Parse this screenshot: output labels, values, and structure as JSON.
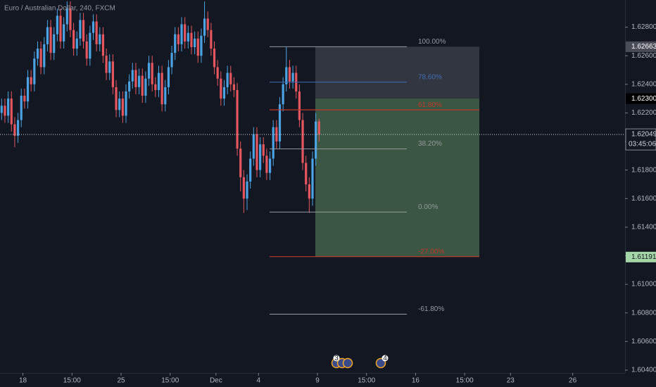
{
  "chart_data": {
    "type": "candlestick",
    "title": "Euro / Australian Dollar, 240, FXCM",
    "up_color": "#4ba3e3",
    "down_color": "#e5565e",
    "ylim": [
      1.6038,
      1.6299
    ],
    "xlim": [
      -0.5,
      190.5
    ],
    "grid": false,
    "yticks": [
      {
        "value": 1.604,
        "label": "1.60400"
      },
      {
        "value": 1.606,
        "label": "1.60600"
      },
      {
        "value": 1.608,
        "label": "1.60800"
      },
      {
        "value": 1.61,
        "label": "1.61000"
      },
      {
        "value": 1.612,
        "label": "1.61200"
      },
      {
        "value": 1.614,
        "label": "1.61400"
      },
      {
        "value": 1.616,
        "label": "1.61600"
      },
      {
        "value": 1.618,
        "label": "1.61800"
      },
      {
        "value": 1.62,
        "label": "1.62000"
      },
      {
        "value": 1.622,
        "label": "1.62200"
      },
      {
        "value": 1.624,
        "label": "1.62400"
      },
      {
        "value": 1.626,
        "label": "1.62600"
      },
      {
        "value": 1.628,
        "label": "1.62800"
      }
    ],
    "xticks": [
      {
        "value": 6.5,
        "label": "18"
      },
      {
        "value": 21.5,
        "label": "15:00"
      },
      {
        "value": 36.5,
        "label": "25"
      },
      {
        "value": 51.5,
        "label": "15:00"
      },
      {
        "value": 65.5,
        "label": "Dec"
      },
      {
        "value": 78.5,
        "label": "4"
      },
      {
        "value": 96.5,
        "label": "9"
      },
      {
        "value": 111.5,
        "label": "15:00"
      },
      {
        "value": 126.5,
        "label": "16"
      },
      {
        "value": 141.5,
        "label": "15:00"
      },
      {
        "value": 155.5,
        "label": "23"
      },
      {
        "value": 174.5,
        "label": "26"
      }
    ],
    "open": [
      1.622,
      1.6225,
      1.6218,
      1.623,
      1.6212,
      1.6204,
      1.6215,
      1.6232,
      1.6228,
      1.6245,
      1.624,
      1.6258,
      1.6265,
      1.6252,
      1.6268,
      1.628,
      1.6262,
      1.6275,
      1.6288,
      1.627,
      1.6282,
      1.6293,
      1.6278,
      1.6265,
      1.6272,
      1.6285,
      1.627,
      1.6258,
      1.6276,
      1.6284,
      1.6268,
      1.6275,
      1.626,
      1.6248,
      1.6256,
      1.6238,
      1.6222,
      1.623,
      1.6218,
      1.6235,
      1.6242,
      1.625,
      1.6238,
      1.6246,
      1.6232,
      1.6244,
      1.6255,
      1.624,
      1.6236,
      1.6248,
      1.6226,
      1.6238,
      1.6252,
      1.6262,
      1.6275,
      1.6268,
      1.6282,
      1.627,
      1.6276,
      1.6266,
      1.6272,
      1.626,
      1.6274,
      1.6286,
      1.6278,
      1.6265,
      1.6252,
      1.6244,
      1.623,
      1.6238,
      1.6248,
      1.624,
      1.6236,
      1.6195,
      1.6175,
      1.616,
      1.6172,
      1.6188,
      1.6205,
      1.618,
      1.6198,
      1.619,
      1.6178,
      1.6188,
      1.621,
      1.62,
      1.6226,
      1.624,
      1.6252,
      1.6242,
      1.6248,
      1.6235,
      1.6215,
      1.6185,
      1.617,
      1.616,
      1.6188,
      1.6214
    ],
    "close": [
      1.6225,
      1.6218,
      1.623,
      1.6212,
      1.6204,
      1.6215,
      1.6232,
      1.6228,
      1.6245,
      1.624,
      1.6258,
      1.6265,
      1.6252,
      1.6268,
      1.628,
      1.6262,
      1.6275,
      1.6288,
      1.627,
      1.6282,
      1.6293,
      1.6278,
      1.6265,
      1.6272,
      1.6285,
      1.627,
      1.6258,
      1.6276,
      1.6284,
      1.6268,
      1.6275,
      1.626,
      1.6248,
      1.6256,
      1.6238,
      1.6222,
      1.623,
      1.6218,
      1.6235,
      1.6242,
      1.625,
      1.6238,
      1.6246,
      1.6232,
      1.6244,
      1.6255,
      1.624,
      1.6236,
      1.6248,
      1.6226,
      1.6238,
      1.6252,
      1.6262,
      1.6275,
      1.6268,
      1.6282,
      1.627,
      1.6276,
      1.6266,
      1.6272,
      1.626,
      1.6274,
      1.6286,
      1.6278,
      1.6265,
      1.6252,
      1.6244,
      1.623,
      1.6238,
      1.6248,
      1.624,
      1.6236,
      1.6195,
      1.6175,
      1.616,
      1.6172,
      1.6188,
      1.6205,
      1.618,
      1.6198,
      1.619,
      1.6178,
      1.6188,
      1.621,
      1.62,
      1.6226,
      1.624,
      1.6252,
      1.6242,
      1.6248,
      1.6235,
      1.6215,
      1.6185,
      1.617,
      1.616,
      1.6188,
      1.6214,
      1.6205
    ],
    "high": [
      1.623,
      1.623,
      1.6235,
      1.6235,
      1.6217,
      1.622,
      1.6237,
      1.6237,
      1.625,
      1.625,
      1.6263,
      1.627,
      1.627,
      1.6273,
      1.6285,
      1.6285,
      1.628,
      1.6293,
      1.6293,
      1.6287,
      1.6298,
      1.6298,
      1.6283,
      1.6277,
      1.629,
      1.629,
      1.6275,
      1.6281,
      1.6289,
      1.6289,
      1.628,
      1.628,
      1.6265,
      1.6261,
      1.6261,
      1.6243,
      1.6235,
      1.6235,
      1.624,
      1.6247,
      1.6255,
      1.6255,
      1.6251,
      1.6251,
      1.6249,
      1.626,
      1.626,
      1.6245,
      1.6253,
      1.6253,
      1.6243,
      1.6257,
      1.6267,
      1.628,
      1.628,
      1.6287,
      1.6287,
      1.6281,
      1.6281,
      1.6277,
      1.6277,
      1.6279,
      1.6298,
      1.6291,
      1.6283,
      1.627,
      1.6257,
      1.6249,
      1.6243,
      1.6253,
      1.6253,
      1.6245,
      1.6241,
      1.62,
      1.618,
      1.6177,
      1.6193,
      1.621,
      1.621,
      1.6203,
      1.6203,
      1.6195,
      1.6193,
      1.6215,
      1.6215,
      1.6231,
      1.6245,
      1.6266,
      1.6257,
      1.6253,
      1.6253,
      1.624,
      1.622,
      1.619,
      1.6175,
      1.6193,
      1.622,
      1.6216
    ],
    "low": [
      1.6215,
      1.6213,
      1.6213,
      1.6207,
      1.6196,
      1.6199,
      1.621,
      1.6223,
      1.6223,
      1.6235,
      1.6235,
      1.6253,
      1.6247,
      1.6247,
      1.6263,
      1.6257,
      1.6257,
      1.627,
      1.6265,
      1.6265,
      1.6277,
      1.6273,
      1.626,
      1.626,
      1.6267,
      1.6265,
      1.6253,
      1.6253,
      1.6271,
      1.6263,
      1.6263,
      1.6255,
      1.6243,
      1.6243,
      1.6233,
      1.6217,
      1.6217,
      1.6213,
      1.6213,
      1.623,
      1.6237,
      1.6233,
      1.6233,
      1.6227,
      1.6227,
      1.6239,
      1.6235,
      1.6231,
      1.6231,
      1.6221,
      1.6221,
      1.6233,
      1.6247,
      1.6257,
      1.6263,
      1.6263,
      1.6265,
      1.6265,
      1.6261,
      1.6261,
      1.6255,
      1.6255,
      1.6269,
      1.6273,
      1.626,
      1.6247,
      1.6239,
      1.6225,
      1.6225,
      1.6233,
      1.6235,
      1.6231,
      1.619,
      1.6165,
      1.615,
      1.6152,
      1.6167,
      1.6183,
      1.6175,
      1.6175,
      1.6185,
      1.6173,
      1.6173,
      1.6183,
      1.6195,
      1.6195,
      1.6221,
      1.6235,
      1.6237,
      1.6237,
      1.623,
      1.621,
      1.618,
      1.6165,
      1.615,
      1.6155,
      1.6183,
      1.62
    ],
    "fib_levels": [
      {
        "label": "100.00%",
        "price": 1.62663,
        "color": "#9598a1"
      },
      {
        "label": "78.60%",
        "price": 1.62415,
        "color": "#3f6fb5"
      },
      {
        "label": "61.80%",
        "price": 1.62221,
        "color": "#c0392b"
      },
      {
        "label": "38.20%",
        "price": 1.61948,
        "color": "#9598a1"
      },
      {
        "label": "0.00%",
        "price": 1.61506,
        "color": "#9598a1"
      },
      {
        "label": "-27.00%",
        "price": 1.61194,
        "color": "#c0392b"
      },
      {
        "label": "-61.80%",
        "price": 1.60791,
        "color": "#9598a1"
      }
    ],
    "position": {
      "stop": 1.62663,
      "entry": 1.623,
      "target": 1.61191
    },
    "price_labels": [
      {
        "value": 1.62663,
        "label": "1.62663",
        "color": "#4a4d57"
      },
      {
        "value": 1.623,
        "label": "1.62300",
        "color": "#000000"
      },
      {
        "value": 1.61191,
        "label": "1.61191",
        "color": "#a5d6a7"
      }
    ],
    "current": {
      "value": 1.62049,
      "label": "1.62049",
      "countdown": "03:45:06"
    },
    "events": [
      {
        "badge": "3"
      },
      {
        "badge": "4"
      }
    ]
  }
}
